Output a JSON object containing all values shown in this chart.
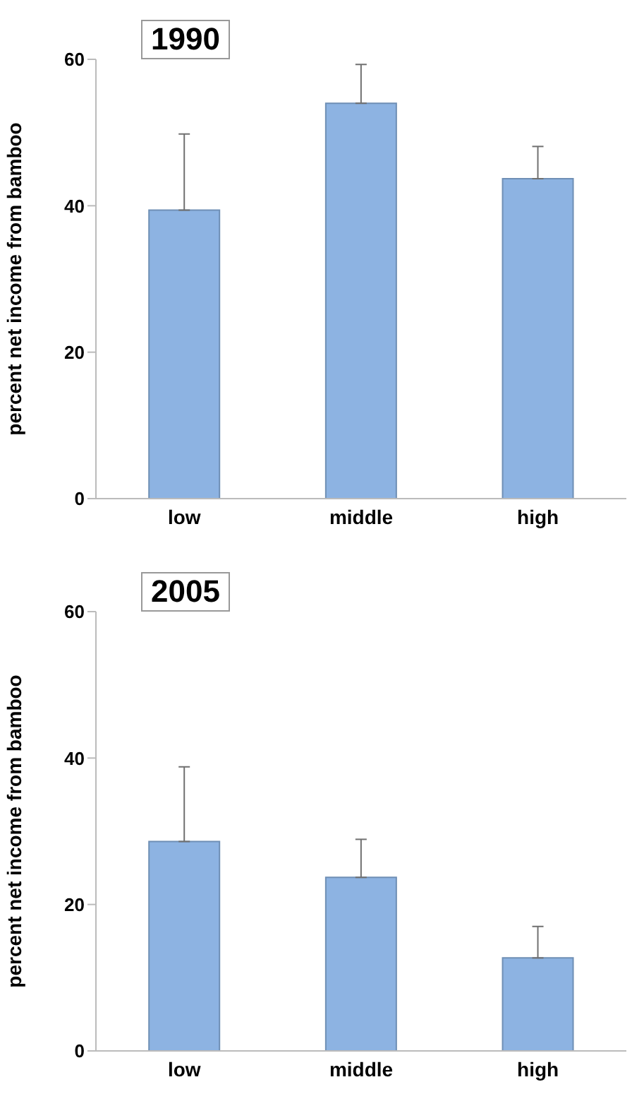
{
  "chart_data": [
    {
      "type": "bar",
      "title": "1990",
      "ylabel": "percent net income from bamboo",
      "categories": [
        "low",
        "middle",
        "high"
      ],
      "values": [
        39.4,
        54.0,
        43.7
      ],
      "errors": [
        [
          39.4,
          49.8
        ],
        [
          54.0,
          59.3
        ],
        [
          43.7,
          48.1
        ]
      ],
      "color": "#8db3e2",
      "ylim": [
        0,
        60
      ],
      "yticks": [
        0,
        20,
        40,
        60
      ],
      "grid": false,
      "legend": false
    },
    {
      "type": "bar",
      "title": "2005",
      "ylabel": "percent net income from bamboo",
      "categories": [
        "low",
        "middle",
        "high"
      ],
      "values": [
        28.6,
        23.7,
        12.7
      ],
      "errors": [
        [
          28.6,
          38.8
        ],
        [
          23.7,
          28.9
        ],
        [
          12.7,
          17.0
        ]
      ],
      "color": "#8db3e2",
      "ylim": [
        0,
        60
      ],
      "yticks": [
        0,
        20,
        40,
        60
      ],
      "grid": false,
      "legend": false
    }
  ]
}
